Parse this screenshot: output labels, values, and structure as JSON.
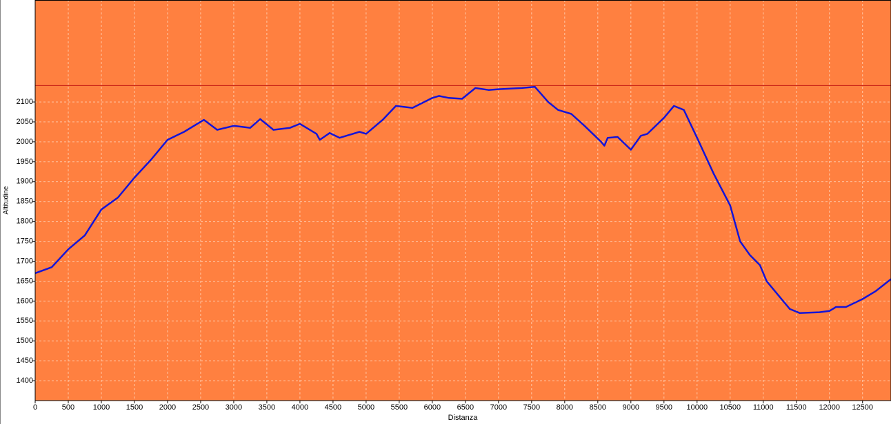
{
  "chart_data": {
    "type": "line",
    "x_label": "Distanza",
    "y_label": "Altitudine",
    "xlim": [
      0,
      12930
    ],
    "ylim": [
      1350,
      2356
    ],
    "xticks": [
      0,
      500,
      1000,
      1500,
      2000,
      2500,
      3000,
      3500,
      4000,
      4500,
      5000,
      5500,
      6000,
      6500,
      7000,
      7500,
      8000,
      8500,
      9000,
      9500,
      10000,
      10500,
      11000,
      11500,
      12000,
      12500
    ],
    "yticks": [
      1400,
      1450,
      1500,
      1550,
      1600,
      1650,
      1700,
      1750,
      1800,
      1850,
      1900,
      1950,
      2000,
      2050,
      2100
    ],
    "grid": true,
    "background": "#ff8040",
    "hline": 2141,
    "hline_color": "#c01010",
    "series": [
      {
        "color": "#1414d8",
        "x": [
          0,
          250,
          500,
          750,
          1000,
          1250,
          1500,
          1750,
          2000,
          2250,
          2550,
          2750,
          3000,
          3250,
          3400,
          3600,
          3850,
          4000,
          4250,
          4300,
          4450,
          4600,
          4900,
          5000,
          5250,
          5450,
          5700,
          6000,
          6100,
          6250,
          6450,
          6650,
          6850,
          7000,
          7350,
          7550,
          7750,
          7900,
          8100,
          8300,
          8550,
          8600,
          8650,
          8800,
          9000,
          9150,
          9250,
          9500,
          9650,
          9800,
          10000,
          10250,
          10500,
          10650,
          10800,
          10950,
          11050,
          11250,
          11400,
          11550,
          11850,
          12000,
          12100,
          12250,
          12500,
          12700,
          12930
        ],
        "values": [
          1670,
          1685,
          1730,
          1765,
          1830,
          1860,
          1910,
          1955,
          2005,
          2025,
          2055,
          2030,
          2040,
          2035,
          2057,
          2030,
          2035,
          2045,
          2020,
          2005,
          2022,
          2010,
          2025,
          2020,
          2055,
          2090,
          2085,
          2110,
          2115,
          2110,
          2108,
          2135,
          2130,
          2132,
          2135,
          2138,
          2100,
          2080,
          2070,
          2040,
          2000,
          1990,
          2010,
          2012,
          1980,
          2015,
          2020,
          2060,
          2090,
          2080,
          2010,
          1920,
          1840,
          1750,
          1715,
          1690,
          1650,
          1610,
          1580,
          1570,
          1572,
          1575,
          1585,
          1585,
          1605,
          1625,
          1655
        ]
      }
    ]
  }
}
